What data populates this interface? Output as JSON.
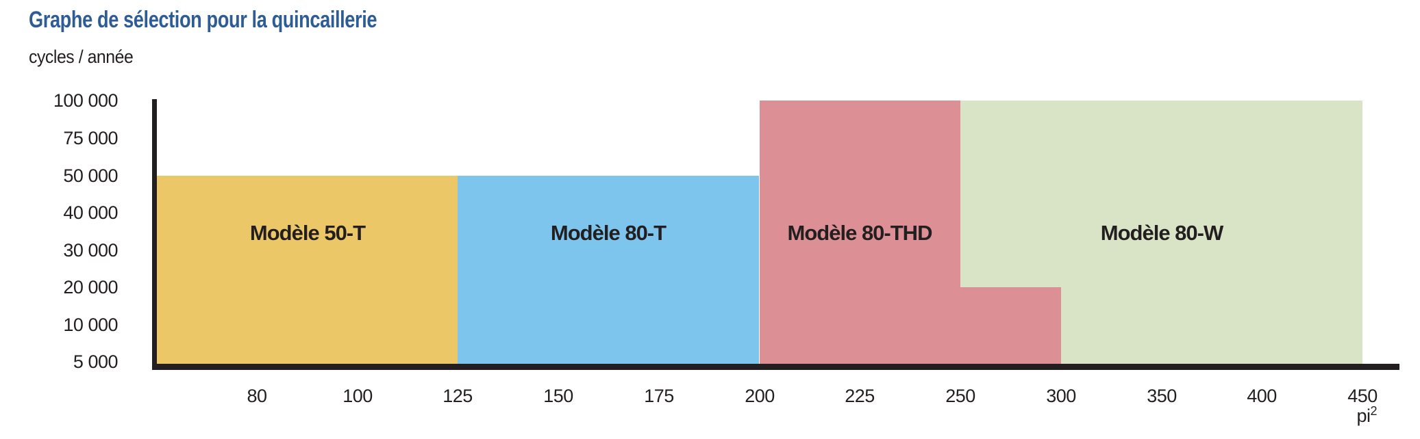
{
  "chart_data": {
    "type": "area",
    "subtype": "selection-zones-step-chart",
    "title": "Graphe de sélection pour la quincaillerie",
    "title_color": "#2e5d96",
    "ylabel": "cycles / année",
    "xlabel": "pi²",
    "x_unit_base": "pi",
    "x_unit_exponent": "2",
    "axis_color": "#231f20",
    "x_scale": "segmented-equal-spacing",
    "y_scale": "segmented-equal-spacing",
    "x_ticks": [
      80,
      100,
      125,
      150,
      175,
      200,
      225,
      250,
      300,
      350,
      400,
      450
    ],
    "x_tick_labels": [
      "80",
      "100",
      "125",
      "150",
      "175",
      "200",
      "225",
      "250",
      "300",
      "350",
      "400",
      "450"
    ],
    "y_ticks": [
      5000,
      10000,
      20000,
      30000,
      40000,
      50000,
      75000,
      100000
    ],
    "y_tick_labels": [
      "5 000",
      "10 000",
      "20 000",
      "30 000",
      "40 000",
      "50 000",
      "75 000",
      "100 000"
    ],
    "grid": false,
    "legend": false,
    "regions": [
      {
        "label": "Modèle 50-T",
        "color": "#ecc768",
        "rects": [
          {
            "x_from": null,
            "x_to": 125,
            "y_from": "base",
            "y_to": 50000
          }
        ]
      },
      {
        "label": "Modèle 80-T",
        "color": "#7ec5ee",
        "rects": [
          {
            "x_from": 125,
            "x_to": 200,
            "y_from": "base",
            "y_to": 50000
          }
        ]
      },
      {
        "label": "Modèle 80-THD",
        "color": "#dc9096",
        "rects": [
          {
            "x_from": 200,
            "x_to": 250,
            "y_from": "base",
            "y_to": 100000
          },
          {
            "x_from": 250,
            "x_to": 300,
            "y_from": "base",
            "y_to": 20000
          }
        ]
      },
      {
        "label": "Modèle 80-W",
        "color": "#d9e4c6",
        "rects": [
          {
            "x_from": 250,
            "x_to": 450,
            "y_from": 20000,
            "y_to": 100000
          },
          {
            "x_from": 300,
            "x_to": 450,
            "y_from": "base",
            "y_to": 20000
          }
        ]
      }
    ]
  }
}
